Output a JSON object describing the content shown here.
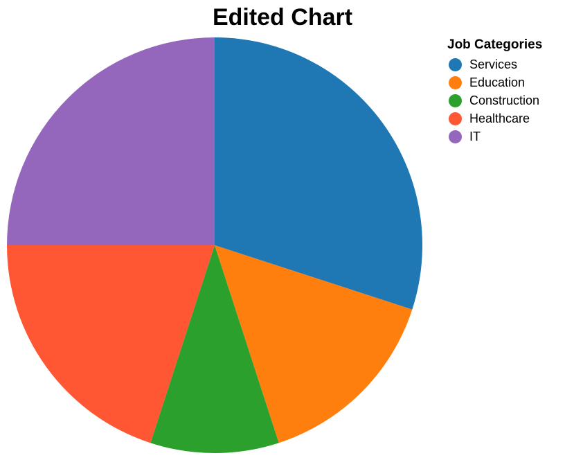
{
  "chart_data": {
    "type": "pie",
    "title": "Edited Chart",
    "legend": {
      "title": "Job Categories",
      "placement": "top-right"
    },
    "categories": [
      "Services",
      "Education",
      "Construction",
      "Healthcare",
      "IT"
    ],
    "values": [
      30,
      15,
      10,
      20,
      25
    ],
    "colors": [
      "#1f77b4",
      "#ff7f0e",
      "#2ca02c",
      "#ff5733",
      "#9467bd"
    ]
  }
}
